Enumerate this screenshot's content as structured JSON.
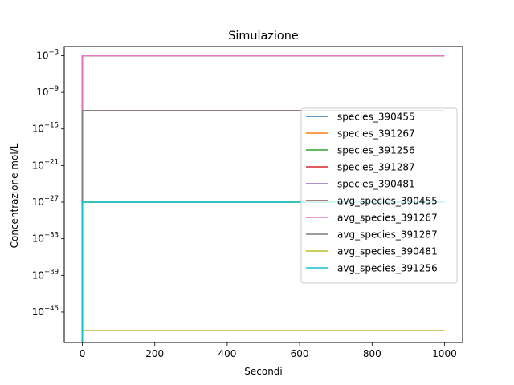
{
  "chart_data": {
    "type": "line",
    "title": "Simulazione",
    "xlabel": "Secondi",
    "ylabel": "Concentrazione mol/L",
    "x_scale": "linear",
    "y_scale": "log",
    "xlim": [
      -50,
      1050
    ],
    "ylim_exponent": [
      -50,
      -1.5
    ],
    "x_ticks": [
      0,
      200,
      400,
      600,
      800,
      1000
    ],
    "x_tick_labels": [
      "0",
      "200",
      "400",
      "600",
      "800",
      "1000"
    ],
    "y_tick_exponents": [
      -45,
      -39,
      -33,
      -27,
      -21,
      -15,
      -9,
      -3
    ],
    "y_tick_base": "10",
    "y_tick_minus": "−",
    "grid": false,
    "legend_position": "right",
    "series": [
      {
        "name": "species_390455",
        "color": "#1f77b4",
        "x": [
          0,
          0.01,
          1000
        ],
        "y_exponent": [
          -50,
          -3,
          -3
        ]
      },
      {
        "name": "species_391267",
        "color": "#ff7f0e",
        "x": [
          0,
          0.01,
          1000
        ],
        "y_exponent": [
          -50,
          -3,
          -3
        ]
      },
      {
        "name": "species_391256",
        "color": "#2ca02c",
        "x": [
          0,
          0.01,
          1000
        ],
        "y_exponent": [
          -50,
          -27,
          -27
        ]
      },
      {
        "name": "species_391287",
        "color": "#d62728",
        "x": [
          0,
          0.01,
          1000
        ],
        "y_exponent": [
          -50,
          -12,
          -12
        ]
      },
      {
        "name": "species_390481",
        "color": "#9467bd",
        "x": [
          0,
          0.01,
          1000
        ],
        "y_exponent": [
          -50,
          -48,
          -48
        ]
      },
      {
        "name": "avg_species_390455",
        "color": "#8c564b",
        "x": [
          0,
          0.01,
          1000
        ],
        "y_exponent": [
          -50,
          -3,
          -3
        ]
      },
      {
        "name": "avg_species_391267",
        "color": "#e377c2",
        "x": [
          0,
          0.01,
          1000
        ],
        "y_exponent": [
          -50,
          -3,
          -3
        ]
      },
      {
        "name": "avg_species_391287",
        "color": "#7f7f7f",
        "x": [
          0,
          0.01,
          1000
        ],
        "y_exponent": [
          -50,
          -12,
          -12
        ]
      },
      {
        "name": "avg_species_390481",
        "color": "#bcbd22",
        "x": [
          0,
          0.01,
          1000
        ],
        "y_exponent": [
          -50,
          -48,
          -48
        ]
      },
      {
        "name": "avg_species_391256",
        "color": "#17becf",
        "x": [
          0,
          0.01,
          1000
        ],
        "y_exponent": [
          -50,
          -27,
          -27
        ]
      }
    ]
  }
}
